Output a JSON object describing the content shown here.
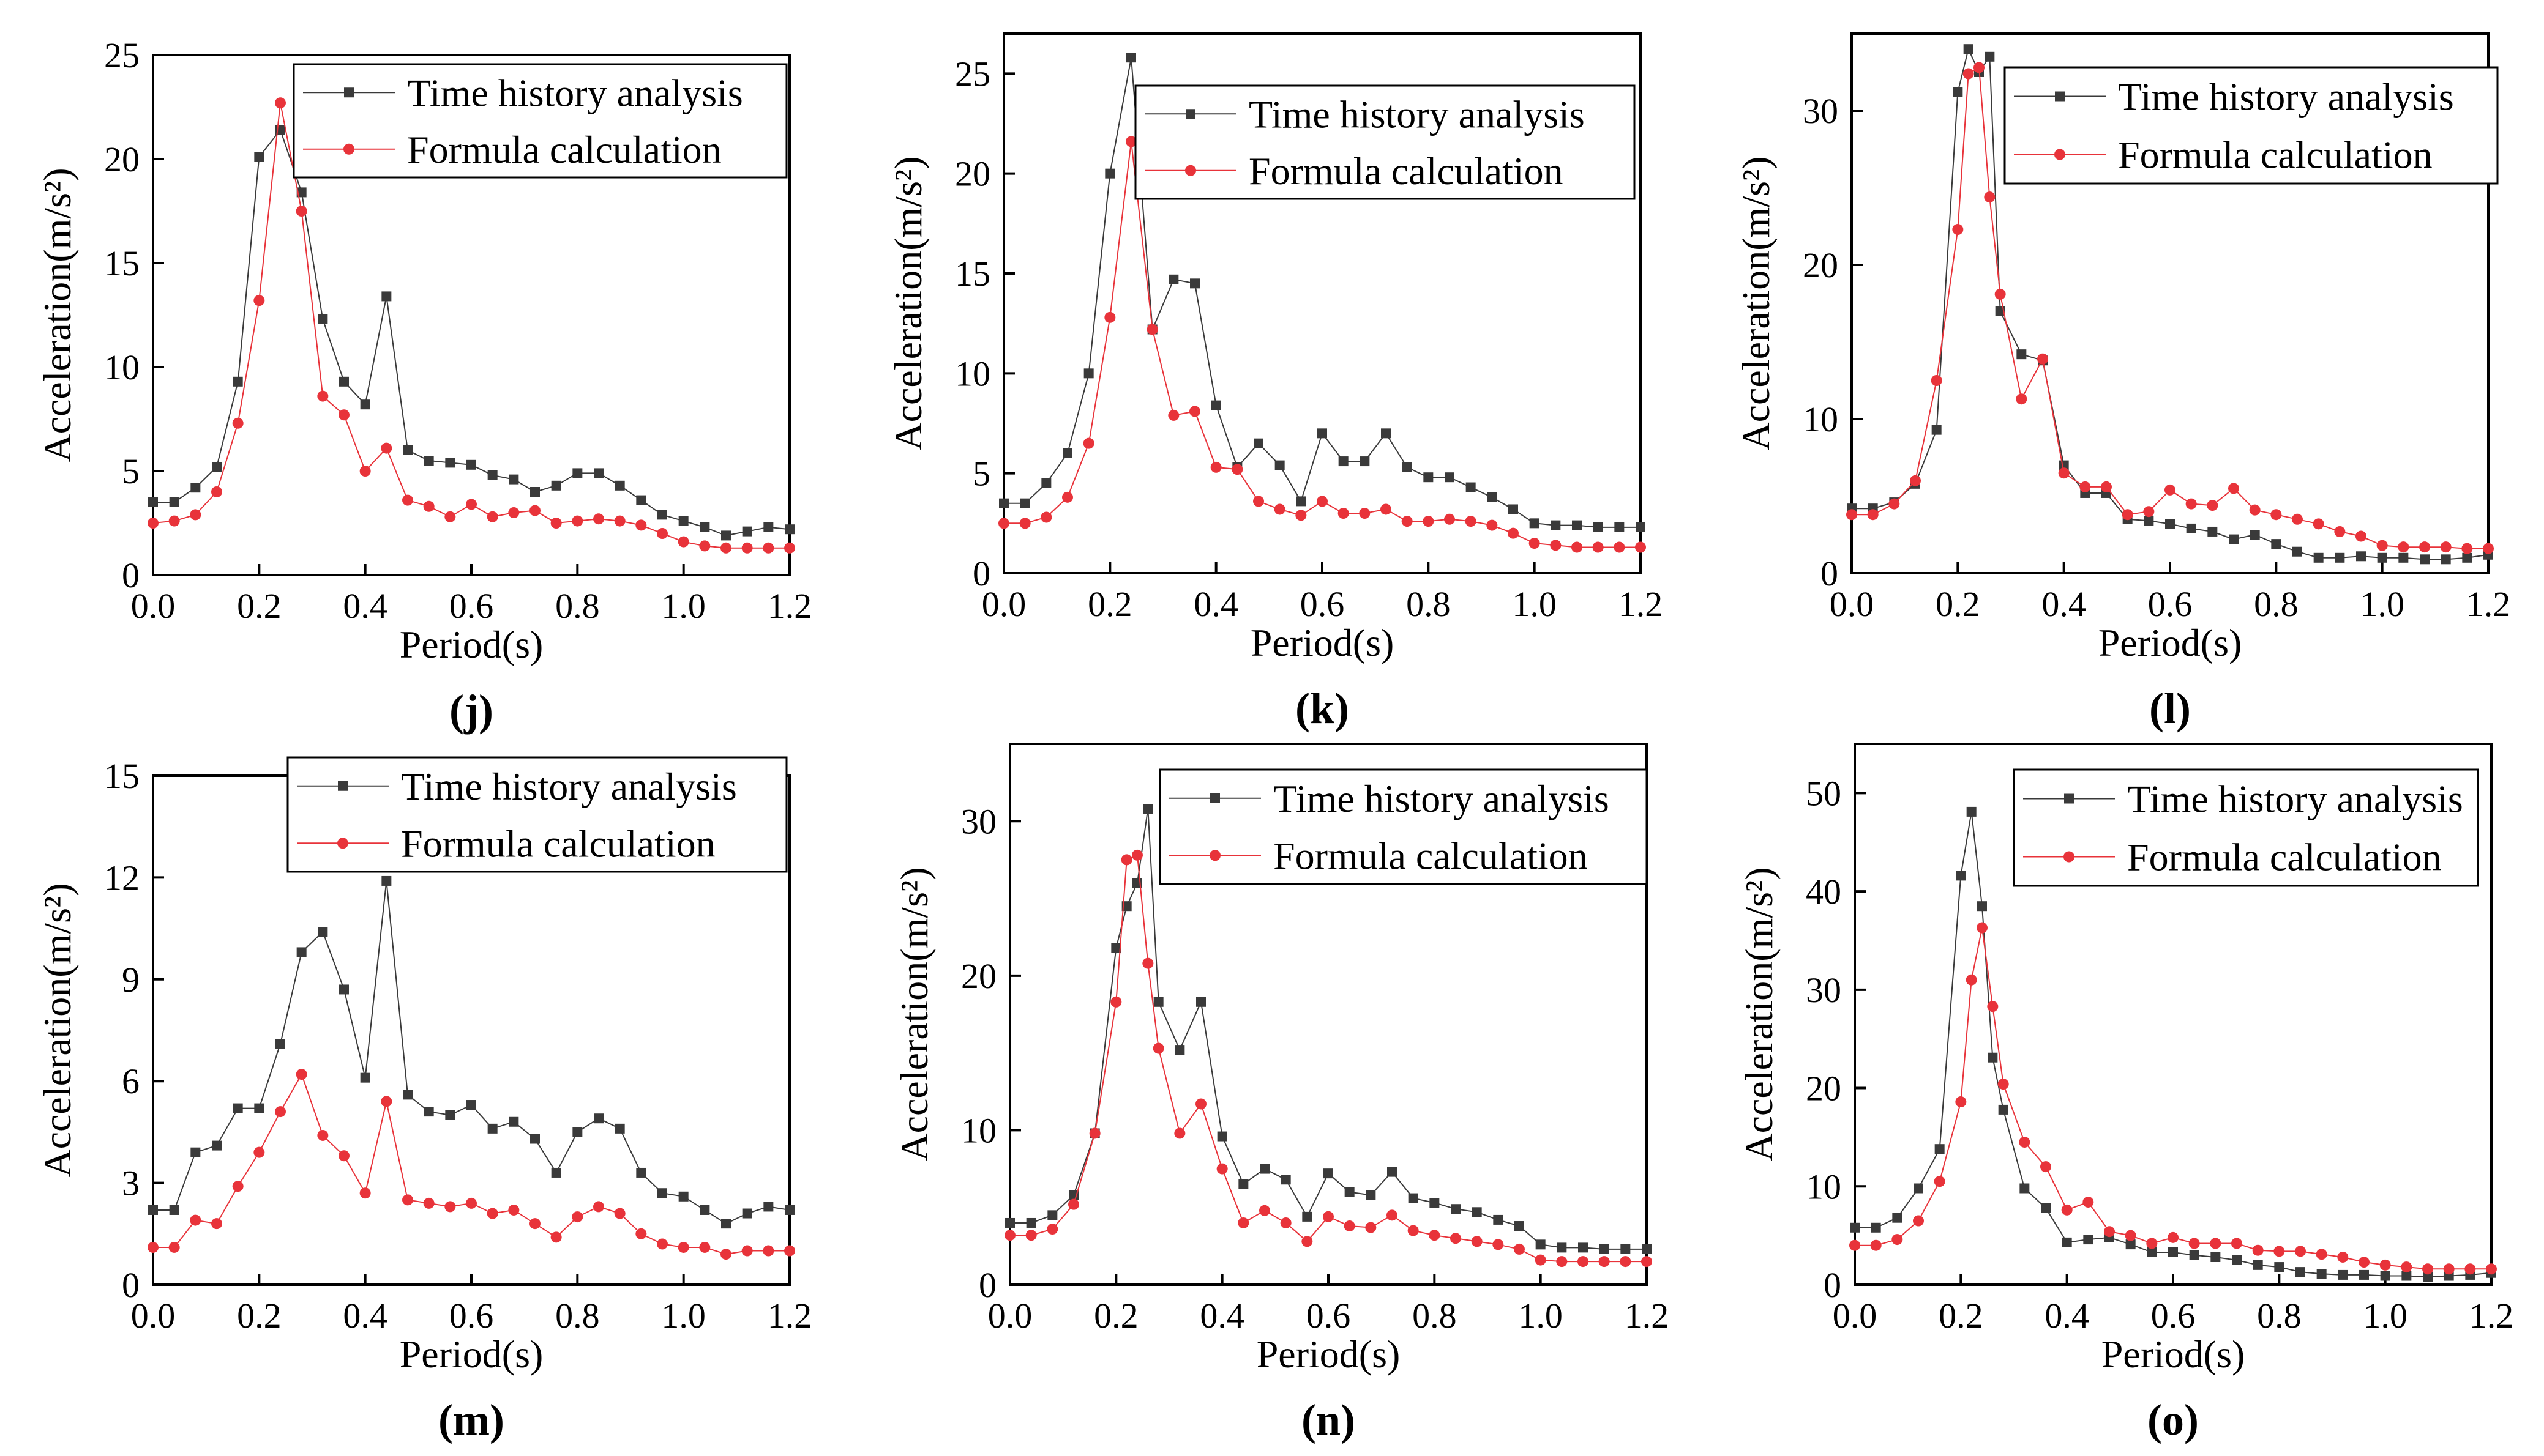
{
  "figure": {
    "series_names": [
      "Time history analysis",
      "Formula calculation"
    ],
    "colors": {
      "time_history": "#3a3a3a",
      "formula": "#e8333a"
    },
    "marker_icons": {
      "time_history": "square-marker-icon",
      "formula": "circle-marker-icon"
    }
  },
  "chart_data": [
    {
      "type": "line",
      "panel": "j",
      "panel_label": "(j)",
      "title": "",
      "xlabel": "Period(s)",
      "ylabel": "Acceleration(m/s²)",
      "xlim": [
        0,
        1.2
      ],
      "ylim": [
        0,
        25
      ],
      "xticks": [
        "0.0",
        "0.2",
        "0.4",
        "0.6",
        "0.8",
        "1.0",
        "1.2"
      ],
      "yticks": [
        "0",
        "5",
        "10",
        "15",
        "20",
        "25"
      ],
      "legend": "top-right",
      "series": [
        {
          "name": "Time history analysis",
          "marker": "square",
          "x": [
            0.0,
            0.04,
            0.08,
            0.12,
            0.16,
            0.2,
            0.24,
            0.28,
            0.32,
            0.36,
            0.4,
            0.44,
            0.48,
            0.52,
            0.56,
            0.6,
            0.64,
            0.68,
            0.72,
            0.76,
            0.8,
            0.84,
            0.88,
            0.92,
            0.96,
            1.0,
            1.04,
            1.08,
            1.12,
            1.16,
            1.2
          ],
          "y": [
            3.5,
            3.5,
            4.2,
            5.2,
            9.3,
            20.1,
            21.4,
            18.4,
            12.3,
            9.3,
            8.2,
            13.4,
            6.0,
            5.5,
            5.4,
            5.3,
            4.8,
            4.6,
            4.0,
            4.3,
            4.9,
            4.9,
            4.3,
            3.6,
            2.9,
            2.6,
            2.3,
            1.9,
            2.1,
            2.3,
            2.2
          ]
        },
        {
          "name": "Formula calculation",
          "marker": "circle",
          "x": [
            0.0,
            0.04,
            0.08,
            0.12,
            0.16,
            0.2,
            0.24,
            0.28,
            0.32,
            0.36,
            0.4,
            0.44,
            0.48,
            0.52,
            0.56,
            0.6,
            0.64,
            0.68,
            0.72,
            0.76,
            0.8,
            0.84,
            0.88,
            0.92,
            0.96,
            1.0,
            1.04,
            1.08,
            1.12,
            1.16,
            1.2
          ],
          "y": [
            2.5,
            2.6,
            2.9,
            4.0,
            7.3,
            13.2,
            22.7,
            17.5,
            8.6,
            7.7,
            5.0,
            6.1,
            3.6,
            3.3,
            2.8,
            3.4,
            2.8,
            3.0,
            3.1,
            2.5,
            2.6,
            2.7,
            2.6,
            2.4,
            2.0,
            1.6,
            1.4,
            1.3,
            1.3,
            1.3,
            1.3
          ]
        }
      ]
    },
    {
      "type": "line",
      "panel": "k",
      "panel_label": "(k)",
      "title": "",
      "xlabel": "Period(s)",
      "ylabel": "Acceleration(m/s²)",
      "xlim": [
        0,
        1.2
      ],
      "ylim": [
        0,
        27
      ],
      "xticks": [
        "0.0",
        "0.2",
        "0.4",
        "0.6",
        "0.8",
        "1.0",
        "1.2"
      ],
      "yticks": [
        "0",
        "5",
        "10",
        "15",
        "20",
        "25"
      ],
      "legend": "top-right",
      "series": [
        {
          "name": "Time history analysis",
          "marker": "square",
          "x": [
            0.0,
            0.04,
            0.08,
            0.12,
            0.16,
            0.2,
            0.24,
            0.28,
            0.32,
            0.36,
            0.4,
            0.44,
            0.48,
            0.52,
            0.56,
            0.6,
            0.64,
            0.68,
            0.72,
            0.76,
            0.8,
            0.84,
            0.88,
            0.92,
            0.96,
            1.0,
            1.04,
            1.08,
            1.12,
            1.16,
            1.2
          ],
          "y": [
            3.5,
            3.5,
            4.5,
            6.0,
            10.0,
            20.0,
            25.8,
            12.2,
            14.7,
            14.5,
            8.4,
            5.3,
            6.5,
            5.4,
            3.6,
            7.0,
            5.6,
            5.6,
            7.0,
            5.3,
            4.8,
            4.8,
            4.3,
            3.8,
            3.2,
            2.5,
            2.4,
            2.4,
            2.3,
            2.3,
            2.3
          ]
        },
        {
          "name": "Formula calculation",
          "marker": "circle",
          "x": [
            0.0,
            0.04,
            0.08,
            0.12,
            0.16,
            0.2,
            0.24,
            0.28,
            0.32,
            0.36,
            0.4,
            0.44,
            0.48,
            0.52,
            0.56,
            0.6,
            0.64,
            0.68,
            0.72,
            0.76,
            0.8,
            0.84,
            0.88,
            0.92,
            0.96,
            1.0,
            1.04,
            1.08,
            1.12,
            1.16,
            1.2
          ],
          "y": [
            2.5,
            2.5,
            2.8,
            3.8,
            6.5,
            12.8,
            21.6,
            12.2,
            7.9,
            8.1,
            5.3,
            5.2,
            3.6,
            3.2,
            2.9,
            3.6,
            3.0,
            3.0,
            3.2,
            2.6,
            2.6,
            2.7,
            2.6,
            2.4,
            2.0,
            1.5,
            1.4,
            1.3,
            1.3,
            1.3,
            1.3
          ]
        }
      ]
    },
    {
      "type": "line",
      "panel": "l",
      "panel_label": "(l)",
      "title": "",
      "xlabel": "Period(s)",
      "ylabel": "Acceleration(m/s²)",
      "xlim": [
        0,
        1.2
      ],
      "ylim": [
        0,
        35
      ],
      "xticks": [
        "0.0",
        "0.2",
        "0.4",
        "0.6",
        "0.8",
        "1.0",
        "1.2"
      ],
      "yticks": [
        "0",
        "10",
        "20",
        "30"
      ],
      "legend": "top-right",
      "series": [
        {
          "name": "Time history analysis",
          "marker": "square",
          "x": [
            0.0,
            0.04,
            0.08,
            0.12,
            0.16,
            0.2,
            0.22,
            0.24,
            0.26,
            0.28,
            0.32,
            0.36,
            0.4,
            0.44,
            0.48,
            0.52,
            0.56,
            0.6,
            0.64,
            0.68,
            0.72,
            0.76,
            0.8,
            0.84,
            0.88,
            0.92,
            0.96,
            1.0,
            1.04,
            1.08,
            1.12,
            1.16,
            1.2
          ],
          "y": [
            4.2,
            4.2,
            4.6,
            5.8,
            9.3,
            31.2,
            34.0,
            32.5,
            33.5,
            17.0,
            14.2,
            13.8,
            7.0,
            5.2,
            5.2,
            3.5,
            3.4,
            3.2,
            2.9,
            2.7,
            2.2,
            2.5,
            1.9,
            1.4,
            1.0,
            1.0,
            1.1,
            1.0,
            1.0,
            0.9,
            0.9,
            1.0,
            1.2
          ]
        },
        {
          "name": "Formula calculation",
          "marker": "circle",
          "x": [
            0.0,
            0.04,
            0.08,
            0.12,
            0.16,
            0.2,
            0.22,
            0.24,
            0.26,
            0.28,
            0.32,
            0.36,
            0.4,
            0.44,
            0.48,
            0.52,
            0.56,
            0.6,
            0.64,
            0.68,
            0.72,
            0.76,
            0.8,
            0.84,
            0.88,
            0.92,
            0.96,
            1.0,
            1.04,
            1.08,
            1.12,
            1.16,
            1.2
          ],
          "y": [
            3.8,
            3.8,
            4.5,
            6.0,
            12.5,
            22.3,
            32.4,
            32.8,
            24.4,
            18.1,
            11.3,
            13.9,
            6.5,
            5.6,
            5.6,
            3.8,
            4.0,
            5.4,
            4.5,
            4.4,
            5.5,
            4.1,
            3.8,
            3.5,
            3.2,
            2.7,
            2.4,
            1.8,
            1.7,
            1.7,
            1.7,
            1.6,
            1.6
          ]
        }
      ]
    },
    {
      "type": "line",
      "panel": "m",
      "panel_label": "(m)",
      "title": "",
      "xlabel": "Period(s)",
      "ylabel": "Acceleration(m/s²)",
      "xlim": [
        0,
        1.2
      ],
      "ylim": [
        0,
        15
      ],
      "xticks": [
        "0.0",
        "0.2",
        "0.4",
        "0.6",
        "0.8",
        "1.0",
        "1.2"
      ],
      "yticks": [
        "0",
        "3",
        "6",
        "9",
        "12",
        "15"
      ],
      "legend": "top-right",
      "series": [
        {
          "name": "Time history analysis",
          "marker": "square",
          "x": [
            0.0,
            0.04,
            0.08,
            0.12,
            0.16,
            0.2,
            0.24,
            0.28,
            0.32,
            0.36,
            0.4,
            0.44,
            0.48,
            0.52,
            0.56,
            0.6,
            0.64,
            0.68,
            0.72,
            0.76,
            0.8,
            0.84,
            0.88,
            0.92,
            0.96,
            1.0,
            1.04,
            1.08,
            1.12,
            1.16,
            1.2
          ],
          "y": [
            2.2,
            2.2,
            3.9,
            4.1,
            5.2,
            5.2,
            7.1,
            9.8,
            10.4,
            8.7,
            6.1,
            11.9,
            5.6,
            5.1,
            5.0,
            5.3,
            4.6,
            4.8,
            4.3,
            3.3,
            4.5,
            4.9,
            4.6,
            3.3,
            2.7,
            2.6,
            2.2,
            1.8,
            2.1,
            2.3,
            2.2
          ]
        },
        {
          "name": "Formula calculation",
          "marker": "circle",
          "x": [
            0.0,
            0.04,
            0.08,
            0.12,
            0.16,
            0.2,
            0.24,
            0.28,
            0.32,
            0.36,
            0.4,
            0.44,
            0.48,
            0.52,
            0.56,
            0.6,
            0.64,
            0.68,
            0.72,
            0.76,
            0.8,
            0.84,
            0.88,
            0.92,
            0.96,
            1.0,
            1.04,
            1.08,
            1.12,
            1.16,
            1.2
          ],
          "y": [
            1.1,
            1.1,
            1.9,
            1.8,
            2.9,
            3.9,
            5.1,
            6.2,
            4.4,
            3.8,
            2.7,
            5.4,
            2.5,
            2.4,
            2.3,
            2.4,
            2.1,
            2.2,
            1.8,
            1.4,
            2.0,
            2.3,
            2.1,
            1.5,
            1.2,
            1.1,
            1.1,
            0.9,
            1.0,
            1.0,
            1.0
          ]
        }
      ]
    },
    {
      "type": "line",
      "panel": "n",
      "panel_label": "(n)",
      "title": "",
      "xlabel": "Period(s)",
      "ylabel": "Acceleration(m/s²)",
      "xlim": [
        0,
        1.2
      ],
      "ylim": [
        0,
        35
      ],
      "xticks": [
        "0.0",
        "0.2",
        "0.4",
        "0.6",
        "0.8",
        "1.0",
        "1.2"
      ],
      "yticks": [
        "0",
        "10",
        "20",
        "30"
      ],
      "legend": "top-right",
      "series": [
        {
          "name": "Time history analysis",
          "marker": "square",
          "x": [
            0.0,
            0.04,
            0.08,
            0.12,
            0.16,
            0.2,
            0.22,
            0.24,
            0.26,
            0.28,
            0.32,
            0.36,
            0.4,
            0.44,
            0.48,
            0.52,
            0.56,
            0.6,
            0.64,
            0.68,
            0.72,
            0.76,
            0.8,
            0.84,
            0.88,
            0.92,
            0.96,
            1.0,
            1.04,
            1.08,
            1.12,
            1.16,
            1.2
          ],
          "y": [
            4.0,
            4.0,
            4.5,
            5.8,
            9.8,
            21.8,
            24.5,
            26.0,
            30.8,
            18.3,
            15.2,
            18.3,
            9.6,
            6.5,
            7.5,
            6.8,
            4.4,
            7.2,
            6.0,
            5.8,
            7.3,
            5.6,
            5.3,
            4.9,
            4.7,
            4.2,
            3.8,
            2.6,
            2.4,
            2.4,
            2.3,
            2.3,
            2.3
          ]
        },
        {
          "name": "Formula calculation",
          "marker": "circle",
          "x": [
            0.0,
            0.04,
            0.08,
            0.12,
            0.16,
            0.2,
            0.22,
            0.24,
            0.26,
            0.28,
            0.32,
            0.36,
            0.4,
            0.44,
            0.48,
            0.52,
            0.56,
            0.6,
            0.64,
            0.68,
            0.72,
            0.76,
            0.8,
            0.84,
            0.88,
            0.92,
            0.96,
            1.0,
            1.04,
            1.08,
            1.12,
            1.16,
            1.2
          ],
          "y": [
            3.2,
            3.2,
            3.6,
            5.2,
            9.8,
            18.3,
            27.5,
            27.8,
            20.8,
            15.3,
            9.8,
            11.7,
            7.5,
            4.0,
            4.8,
            4.0,
            2.8,
            4.4,
            3.8,
            3.7,
            4.5,
            3.5,
            3.2,
            3.0,
            2.8,
            2.6,
            2.3,
            1.6,
            1.5,
            1.5,
            1.5,
            1.5,
            1.5
          ]
        }
      ]
    },
    {
      "type": "line",
      "panel": "o",
      "panel_label": "(o)",
      "title": "",
      "xlabel": "Period(s)",
      "ylabel": "Acceleration(m/s²)",
      "xlim": [
        0,
        1.2
      ],
      "ylim": [
        0,
        55
      ],
      "xticks": [
        "0.0",
        "0.2",
        "0.4",
        "0.6",
        "0.8",
        "1.0",
        "1.2"
      ],
      "yticks": [
        "0",
        "10",
        "20",
        "30",
        "40",
        "50"
      ],
      "legend": "top-right",
      "series": [
        {
          "name": "Time history analysis",
          "marker": "square",
          "x": [
            0.0,
            0.04,
            0.08,
            0.12,
            0.16,
            0.2,
            0.22,
            0.24,
            0.26,
            0.28,
            0.32,
            0.36,
            0.4,
            0.44,
            0.48,
            0.52,
            0.56,
            0.6,
            0.64,
            0.68,
            0.72,
            0.76,
            0.8,
            0.84,
            0.88,
            0.92,
            0.96,
            1.0,
            1.04,
            1.08,
            1.12,
            1.16,
            1.2
          ],
          "y": [
            5.8,
            5.8,
            6.8,
            9.8,
            13.8,
            41.6,
            48.1,
            38.5,
            23.1,
            17.8,
            9.8,
            7.8,
            4.3,
            4.6,
            4.8,
            4.1,
            3.3,
            3.3,
            3.0,
            2.8,
            2.5,
            2.0,
            1.8,
            1.3,
            1.1,
            1.0,
            1.0,
            0.9,
            0.9,
            0.8,
            0.9,
            1.0,
            1.2
          ]
        },
        {
          "name": "Formula calculation",
          "marker": "circle",
          "x": [
            0.0,
            0.04,
            0.08,
            0.12,
            0.16,
            0.2,
            0.22,
            0.24,
            0.26,
            0.28,
            0.32,
            0.36,
            0.4,
            0.44,
            0.48,
            0.52,
            0.56,
            0.6,
            0.64,
            0.68,
            0.72,
            0.76,
            0.8,
            0.84,
            0.88,
            0.92,
            0.96,
            1.0,
            1.04,
            1.08,
            1.12,
            1.16,
            1.2
          ],
          "y": [
            4.0,
            4.0,
            4.6,
            6.5,
            10.5,
            18.6,
            31.0,
            36.3,
            28.3,
            20.4,
            14.5,
            12.0,
            7.6,
            8.4,
            5.4,
            5.0,
            4.2,
            4.8,
            4.2,
            4.2,
            4.2,
            3.5,
            3.4,
            3.4,
            3.1,
            2.8,
            2.3,
            2.0,
            1.8,
            1.6,
            1.6,
            1.6,
            1.6
          ]
        }
      ]
    }
  ]
}
